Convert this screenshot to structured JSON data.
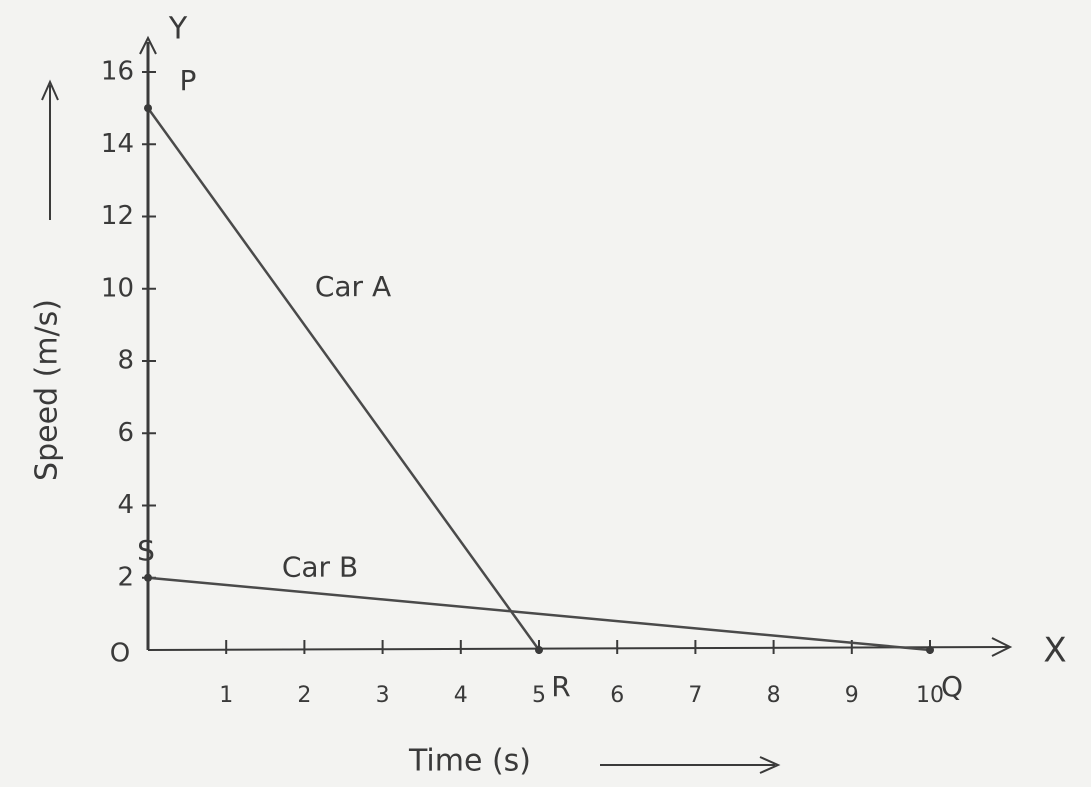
{
  "chart_data": {
    "type": "line",
    "y_label": "Speed (m/s)",
    "x_label": "Time (s)",
    "x_axis_letter": "X",
    "y_axis_letter": "Y",
    "origin_label": "O",
    "xlim": [
      0,
      10
    ],
    "ylim": [
      0,
      16
    ],
    "xticks": [
      1,
      2,
      3,
      4,
      5,
      6,
      7,
      8,
      9,
      10
    ],
    "yticks": [
      2,
      4,
      6,
      8,
      10,
      12,
      14,
      16
    ],
    "series": [
      {
        "name": "Car A",
        "color": "#4a4a4a",
        "x": [
          0,
          5
        ],
        "values": [
          15,
          0
        ]
      },
      {
        "name": "Car B",
        "color": "#4a4a4a",
        "x": [
          0,
          10
        ],
        "values": [
          2,
          0
        ]
      }
    ],
    "point_labels": [
      {
        "text": "P",
        "x": 0,
        "y": 15
      },
      {
        "text": "S",
        "x": 0,
        "y": 2
      },
      {
        "text": "R",
        "x": 5,
        "y": 0
      },
      {
        "text": "Q",
        "x": 10,
        "y": 0
      }
    ]
  }
}
